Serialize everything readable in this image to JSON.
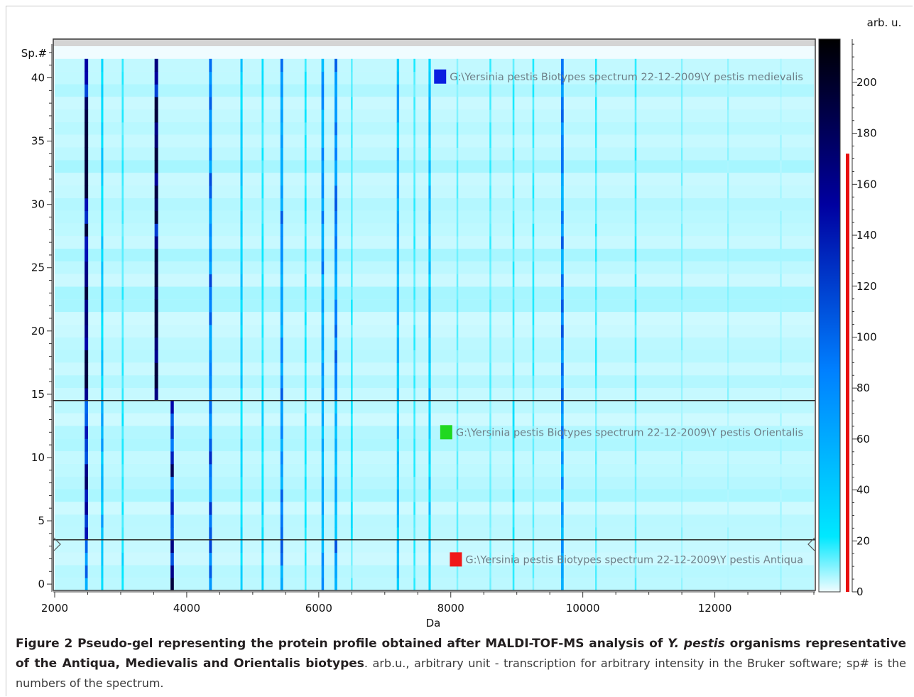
{
  "chart_data": {
    "type": "heatmap",
    "title": "",
    "xlabel": "Da",
    "ylabel": "Sp.#",
    "colorbar_label": "arb. u.",
    "xlim": [
      2000,
      13500
    ],
    "ylim": [
      -0.5,
      42.5
    ],
    "x_ticks": [
      2000,
      4000,
      6000,
      8000,
      10000,
      12000
    ],
    "x_tick_labels": [
      "2000",
      "4000",
      "6000",
      "8000",
      "10000",
      "12000"
    ],
    "y_ticks": [
      0,
      5,
      10,
      15,
      20,
      25,
      30,
      35,
      40
    ],
    "y_tick_labels": [
      "0",
      "5",
      "10",
      "15",
      "20",
      "25",
      "30",
      "35",
      "40"
    ],
    "colorbar_range": [
      0,
      217
    ],
    "colorbar_ticks": [
      0,
      20,
      40,
      60,
      80,
      100,
      120,
      140,
      160,
      180,
      200
    ],
    "colorbar_tick_labels": [
      "0",
      "20",
      "40",
      "60",
      "80",
      "100",
      "120",
      "140",
      "160",
      "180",
      "200"
    ],
    "colorbar_marker_max": 172,
    "colorscale": [
      "#f0fcff",
      "#00e8ff",
      "#0080ff",
      "#0000a0",
      "#000000"
    ],
    "groups": [
      {
        "label": "G:\\Yersinia pestis Biotypes spectrum 22-12-2009\\Y pestis medievalis",
        "color": "#0a1ee0",
        "spectra": [
          15,
          41
        ]
      },
      {
        "label": "G:\\Yersinia pestis Biotypes spectrum 22-12-2009\\Y pestis Orientalis",
        "color": "#20d820",
        "spectra": [
          4,
          14
        ]
      },
      {
        "label": "G:\\Yersinia pestis Biotypes spectrum 22-12-2009\\Y pestis Antiqua",
        "color": "#f01818",
        "spectra": [
          0,
          3
        ]
      }
    ],
    "peaks": [
      {
        "da": 2480,
        "groups": [
          1.0,
          0.9,
          0.6
        ]
      },
      {
        "da": 2720,
        "groups": [
          0.35,
          0.45,
          0.35
        ]
      },
      {
        "da": 3030,
        "groups": [
          0.2,
          0.25,
          0.3
        ]
      },
      {
        "da": 3540,
        "groups": [
          1.0,
          0.0,
          0.0
        ]
      },
      {
        "da": 3780,
        "groups": [
          0.0,
          0.85,
          0.9
        ]
      },
      {
        "da": 4360,
        "groups": [
          0.65,
          0.7,
          0.65
        ]
      },
      {
        "da": 4830,
        "groups": [
          0.35,
          0.3,
          0.3
        ]
      },
      {
        "da": 5150,
        "groups": [
          0.25,
          0.3,
          0.3
        ]
      },
      {
        "da": 5440,
        "groups": [
          0.6,
          0.6,
          0.6
        ]
      },
      {
        "da": 5800,
        "groups": [
          0.25,
          0.25,
          0.2
        ]
      },
      {
        "da": 6060,
        "groups": [
          0.55,
          0.45,
          0.5
        ]
      },
      {
        "da": 6260,
        "groups": [
          0.6,
          0.5,
          0.6
        ]
      },
      {
        "da": 6500,
        "groups": [
          0.2,
          0.25,
          0.15
        ]
      },
      {
        "da": 7200,
        "groups": [
          0.45,
          0.4,
          0.45
        ]
      },
      {
        "da": 7450,
        "groups": [
          0.2,
          0.2,
          0.2
        ]
      },
      {
        "da": 7680,
        "groups": [
          0.4,
          0.35,
          0.35
        ]
      },
      {
        "da": 8100,
        "groups": [
          0.15,
          0.15,
          0.15
        ]
      },
      {
        "da": 8600,
        "groups": [
          0.18,
          0.15,
          0.15
        ]
      },
      {
        "da": 8950,
        "groups": [
          0.2,
          0.25,
          0.2
        ]
      },
      {
        "da": 9250,
        "groups": [
          0.2,
          0.15,
          0.15
        ]
      },
      {
        "da": 9690,
        "groups": [
          0.6,
          0.55,
          0.6
        ]
      },
      {
        "da": 10200,
        "groups": [
          0.2,
          0.15,
          0.15
        ]
      },
      {
        "da": 10800,
        "groups": [
          0.2,
          0.15,
          0.15
        ]
      },
      {
        "da": 11500,
        "groups": [
          0.12,
          0.1,
          0.1
        ]
      },
      {
        "da": 12200,
        "groups": [
          0.1,
          0.08,
          0.08
        ]
      },
      {
        "da": 13000,
        "groups": [
          0.08,
          0.08,
          0.08
        ]
      }
    ]
  },
  "caption": {
    "fig_label": "Figure 2",
    "title_part1": " Pseudo-gel representing the protein profile obtained after MALDI-TOF-MS analysis of ",
    "species": "Y. pestis",
    "title_part2": " organisms representative of the Antiqua, Medievalis and Orientalis biotypes",
    "rest": ". arb.u., arbitrary unit - transcription for arbitrary intensity in the Bruker software; sp# is the numbers of the spectrum."
  }
}
